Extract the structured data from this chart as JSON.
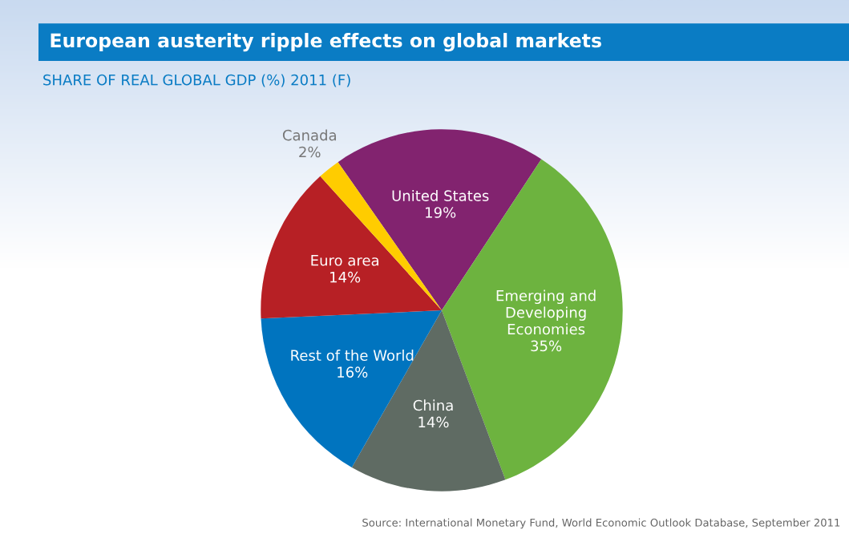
{
  "chart_data": {
    "type": "pie",
    "title": "European austerity ripple effects on global markets",
    "subtitle": "SHARE OF REAL GLOBAL GDP (%) 2011 (F)",
    "categories": [
      "United States",
      "Emerging and\nDeveloping\nEconomies",
      "China",
      "Rest of the World",
      "Euro area",
      "Canada"
    ],
    "values": [
      19,
      35,
      14,
      16,
      14,
      2
    ],
    "colors": [
      "#82236f",
      "#6db33f",
      "#5f6b63",
      "#0074bf",
      "#b72025",
      "#ffcc00"
    ],
    "value_labels": [
      "19%",
      "35%",
      "14%",
      "16%",
      "14%",
      "2%"
    ],
    "annotations": [
      "Source: International Monetary Fund, World Economic Outlook Database, September 2011"
    ]
  }
}
